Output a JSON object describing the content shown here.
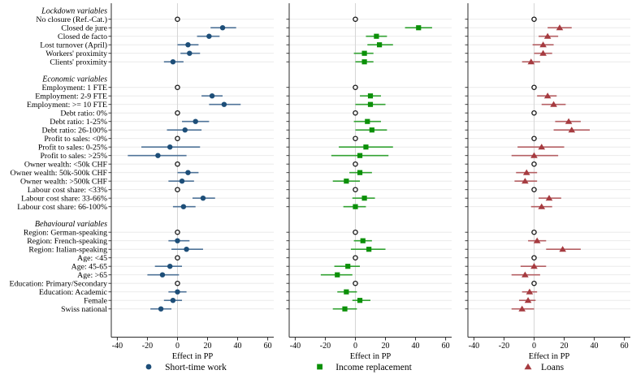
{
  "chart_data": {
    "type": "scatter",
    "subtype": "coefficient-forest-plot",
    "xlabel": "Effect in PP",
    "xticks": [
      -40,
      -20,
      0,
      20,
      40,
      60
    ],
    "xlim": [
      -44,
      64
    ],
    "grid": true,
    "legend_position": "bottom",
    "colors": {
      "axis": "#2b2b2b",
      "gridline": "#e8e8e8",
      "zero_line": "#d6d6d6",
      "ref_marker_stroke": "#141414"
    },
    "series": [
      {
        "key": "short_time_work",
        "label": "Short-time work",
        "marker": "circle",
        "marker_name": "circle-icon",
        "color": "#1d4e78",
        "line_color": "#4f7398"
      },
      {
        "key": "income_replacement",
        "label": "Income replacement",
        "marker": "square",
        "marker_name": "square-icon",
        "color": "#0b9008",
        "line_color": "#33a233"
      },
      {
        "key": "loans",
        "label": "Loans",
        "marker": "triangle",
        "marker_name": "triangle-icon",
        "color": "#a63b40",
        "line_color": "#b56064"
      }
    ],
    "rows": [
      {
        "label": "Lockdown variables",
        "type": "header"
      },
      {
        "label": "No closure (Ref.-Cat.)",
        "type": "ref"
      },
      {
        "label": "Closed de jure",
        "type": "est",
        "values": {
          "short_time_work": [
            30,
            22,
            39
          ],
          "income_replacement": [
            42,
            33,
            51
          ],
          "loans": [
            17,
            9,
            25
          ]
        }
      },
      {
        "label": "Closed de facto",
        "type": "est",
        "values": {
          "short_time_work": [
            21,
            13,
            28
          ],
          "income_replacement": [
            14,
            7,
            21
          ],
          "loans": [
            9,
            3,
            16
          ]
        }
      },
      {
        "label": "Lost turnover (April)",
        "type": "est",
        "values": {
          "short_time_work": [
            7,
            0,
            14
          ],
          "income_replacement": [
            16,
            8,
            25
          ],
          "loans": [
            6,
            -1,
            13
          ]
        }
      },
      {
        "label": "Workers' proximity",
        "type": "est",
        "values": {
          "short_time_work": [
            8,
            2,
            15
          ],
          "income_replacement": [
            6,
            -1,
            12
          ],
          "loans": [
            6,
            0,
            12
          ]
        }
      },
      {
        "label": "Clients' proximity",
        "type": "est",
        "values": {
          "short_time_work": [
            -3,
            -9,
            4
          ],
          "income_replacement": [
            6,
            0,
            12
          ],
          "loans": [
            -2,
            -8,
            4
          ]
        }
      },
      {
        "label": "",
        "type": "gap"
      },
      {
        "label": "Economic variables",
        "type": "header"
      },
      {
        "label": "Employment: 1 FTE",
        "type": "ref"
      },
      {
        "label": "Employment: 2-9 FTE",
        "type": "est",
        "values": {
          "short_time_work": [
            23,
            16,
            30
          ],
          "income_replacement": [
            10,
            3,
            17
          ],
          "loans": [
            9,
            2,
            15
          ]
        }
      },
      {
        "label": "Employment:  >= 10 FTE",
        "type": "est",
        "values": {
          "short_time_work": [
            31,
            21,
            42
          ],
          "income_replacement": [
            10,
            0,
            20
          ],
          "loans": [
            13,
            5,
            21
          ]
        }
      },
      {
        "label": "Debt ratio: 0%",
        "type": "ref"
      },
      {
        "label": "Debt ratio: 1-25%",
        "type": "est",
        "values": {
          "short_time_work": [
            12,
            3,
            21
          ],
          "income_replacement": [
            8,
            -1,
            17
          ],
          "loans": [
            23,
            14,
            31
          ]
        }
      },
      {
        "label": "Debt ratio: 26-100%",
        "type": "est",
        "values": {
          "short_time_work": [
            5,
            -7,
            16
          ],
          "income_replacement": [
            11,
            0,
            21
          ],
          "loans": [
            25,
            13,
            37
          ]
        }
      },
      {
        "label": "Profit to sales: <0%",
        "type": "ref"
      },
      {
        "label": "Profit to sales: 0-25%",
        "type": "est",
        "values": {
          "short_time_work": [
            -5,
            -24,
            15
          ],
          "income_replacement": [
            7,
            -11,
            25
          ],
          "loans": [
            5,
            -11,
            20
          ]
        }
      },
      {
        "label": "Profit to sales: >25%",
        "type": "est",
        "values": {
          "short_time_work": [
            -13,
            -33,
            6
          ],
          "income_replacement": [
            3,
            -16,
            22
          ],
          "loans": [
            0,
            -15,
            16
          ]
        }
      },
      {
        "label": "Owner wealth: <50k CHF",
        "type": "ref"
      },
      {
        "label": "Owner wealth: 50k-500k CHF",
        "type": "est",
        "values": {
          "short_time_work": [
            7,
            0,
            14
          ],
          "income_replacement": [
            3,
            -4,
            11
          ],
          "loans": [
            -5,
            -12,
            2
          ]
        }
      },
      {
        "label": "Owner wealth: >500k CHF",
        "type": "est",
        "values": {
          "short_time_work": [
            3,
            -6,
            11
          ],
          "income_replacement": [
            -6,
            -15,
            3
          ],
          "loans": [
            -6,
            -13,
            2
          ]
        }
      },
      {
        "label": "Labour cost share: <33%",
        "type": "ref"
      },
      {
        "label": "Labour cost share: 33-66%",
        "type": "est",
        "values": {
          "short_time_work": [
            17,
            10,
            25
          ],
          "income_replacement": [
            6,
            -2,
            13
          ],
          "loans": [
            10,
            3,
            18
          ]
        }
      },
      {
        "label": "Labour cost share: 66-100%",
        "type": "est",
        "values": {
          "short_time_work": [
            4,
            -3,
            12
          ],
          "income_replacement": [
            0,
            -8,
            7
          ],
          "loans": [
            5,
            -2,
            12
          ]
        }
      },
      {
        "label": "",
        "type": "gap"
      },
      {
        "label": "Behavioural variables",
        "type": "header"
      },
      {
        "label": "Region: German-speaking",
        "type": "ref"
      },
      {
        "label": "Region: French-speaking",
        "type": "est",
        "values": {
          "short_time_work": [
            0,
            -6,
            8
          ],
          "income_replacement": [
            5,
            -1,
            11
          ],
          "loans": [
            2,
            -4,
            8
          ]
        }
      },
      {
        "label": "Region: Italian-speaking",
        "type": "est",
        "values": {
          "short_time_work": [
            6,
            -4,
            17
          ],
          "income_replacement": [
            9,
            -3,
            20
          ],
          "loans": [
            19,
            8,
            31
          ]
        }
      },
      {
        "label": "Age: <45",
        "type": "ref"
      },
      {
        "label": "Age: 45-65",
        "type": "est",
        "values": {
          "short_time_work": [
            -5,
            -15,
            3
          ],
          "income_replacement": [
            -5,
            -14,
            3
          ],
          "loans": [
            0,
            -9,
            8
          ]
        }
      },
      {
        "label": "Age: >65",
        "type": "est",
        "values": {
          "short_time_work": [
            -10,
            -20,
            1
          ],
          "income_replacement": [
            -12,
            -23,
            -2
          ],
          "loans": [
            -6,
            -15,
            4
          ]
        }
      },
      {
        "label": "Education: Primary/Secondary",
        "type": "ref"
      },
      {
        "label": "Education: Academic",
        "type": "est",
        "values": {
          "short_time_work": [
            0,
            -6,
            6
          ],
          "income_replacement": [
            -6,
            -12,
            1
          ],
          "loans": [
            -3,
            -8,
            2
          ]
        }
      },
      {
        "label": "Female",
        "type": "est",
        "values": {
          "short_time_work": [
            -3,
            -9,
            3
          ],
          "income_replacement": [
            3,
            -2,
            10
          ],
          "loans": [
            -4,
            -10,
            1
          ]
        }
      },
      {
        "label": "Swiss national",
        "type": "est",
        "values": {
          "short_time_work": [
            -11,
            -18,
            -4
          ],
          "income_replacement": [
            -7,
            -15,
            1
          ],
          "loans": [
            -8,
            -15,
            0
          ]
        }
      }
    ]
  }
}
